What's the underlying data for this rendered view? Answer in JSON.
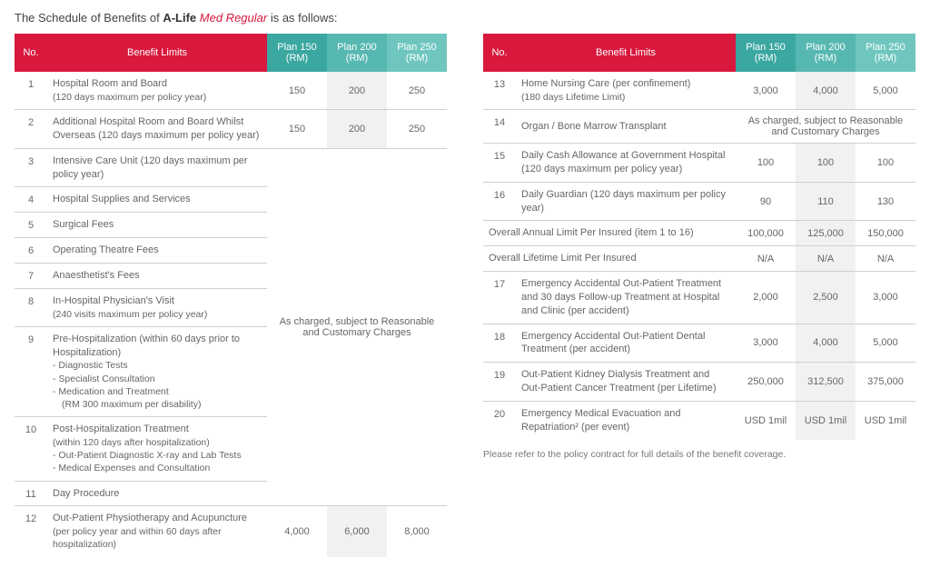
{
  "title_prefix": "The Schedule of Benefits of ",
  "title_brand": "A-Life ",
  "title_med": "Med Regular",
  "title_suffix": " is as follows:",
  "headers": {
    "no": "No.",
    "benefit": "Benefit Limits",
    "p1": "Plan 150 (RM)",
    "p2": "Plan 200 (RM)",
    "p3": "Plan 250 (RM)"
  },
  "left": {
    "r1": {
      "no": "1",
      "bl": "Hospital Room and Board",
      "sub": "(120 days maximum per policy year)",
      "p1": "150",
      "p2": "200",
      "p3": "250"
    },
    "r2": {
      "no": "2",
      "bl": "Additional Hospital Room and Board Whilst Overseas (120 days maximum per policy year)",
      "p1": "150",
      "p2": "200",
      "p3": "250"
    },
    "r3": {
      "no": "3",
      "bl": "Intensive Care Unit (120 days maximum per policy year)"
    },
    "r4": {
      "no": "4",
      "bl": "Hospital Supplies and Services"
    },
    "r5": {
      "no": "5",
      "bl": "Surgical Fees"
    },
    "r6": {
      "no": "6",
      "bl": "Operating Theatre Fees"
    },
    "r7": {
      "no": "7",
      "bl": "Anaesthetist's Fees"
    },
    "r8": {
      "no": "8",
      "bl": "In-Hospital Physician's Visit",
      "sub": "(240 visits maximum per policy year)"
    },
    "r9": {
      "no": "9",
      "bl": "Pre-Hospitalization (within 60 days prior to Hospitalization)",
      "s1": "- Diagnostic Tests",
      "s2": "- Specialist Consultation",
      "s3": "- Medication and Treatment",
      "s4": "   (RM 300 maximum per disability)"
    },
    "r10": {
      "no": "10",
      "bl": "Post-Hospitalization Treatment",
      "s0": "(within 120 days after hospitalization)",
      "s1": "-   Out-Patient Diagnostic X-ray and Lab Tests",
      "s2": "-   Medical Expenses and Consultation"
    },
    "r11": {
      "no": "11",
      "bl": "Day Procedure"
    },
    "r12": {
      "no": "12",
      "bl": "Out-Patient Physiotherapy and Acupuncture",
      "sub": "(per policy year and within 60 days after hospitalization)",
      "p1": "4,000",
      "p2": "6,000",
      "p3": "8,000"
    },
    "merged": "As charged, subject to Reasonable and Customary Charges"
  },
  "right": {
    "r13": {
      "no": "13",
      "bl": "Home Nursing Care (per confinement)",
      "sub": "(180 days Lifetime Limit)",
      "p1": "3,000",
      "p2": "4,000",
      "p3": "5,000"
    },
    "r14": {
      "no": "14",
      "bl": "Organ / Bone Marrow Transplant",
      "merged": "As charged, subject to Reasonable and Customary Charges"
    },
    "r15": {
      "no": "15",
      "bl": "Daily Cash Allowance at Government Hospital (120 days maximum per policy year)",
      "p1": "100",
      "p2": "100",
      "p3": "100"
    },
    "r16": {
      "no": "16",
      "bl": "Daily Guardian (120 days maximum per policy year)",
      "p1": "90",
      "p2": "110",
      "p3": "130"
    },
    "annual": {
      "bl": "Overall Annual Limit Per Insured (item 1 to 16)",
      "p1": "100,000",
      "p2": "125,000",
      "p3": "150,000"
    },
    "lifetime": {
      "bl": "Overall Lifetime Limit Per Insured",
      "p1": "N/A",
      "p2": "N/A",
      "p3": "N/A"
    },
    "r17": {
      "no": "17",
      "bl": "Emergency Accidental Out-Patient Treatment and 30 days Follow-up Treatment at Hospital and Clinic (per accident)",
      "p1": "2,000",
      "p2": "2,500",
      "p3": "3,000"
    },
    "r18": {
      "no": "18",
      "bl": "Emergency Accidental Out-Patient Dental Treatment (per accident)",
      "p1": "3,000",
      "p2": "4,000",
      "p3": "5,000"
    },
    "r19": {
      "no": "19",
      "bl": "Out-Patient Kidney Dialysis Treatment and Out-Patient Cancer Treatment (per Lifetime)",
      "p1": "250,000",
      "p2": "312,500",
      "p3": "375,000"
    },
    "r20": {
      "no": "20",
      "bl": "Emergency Medical Evacuation and Repatriation² (per event)",
      "p1": "USD 1mil",
      "p2": "USD 1mil",
      "p3": "USD 1mil"
    }
  },
  "footnote": "Please refer to the policy contract for full details of the benefit coverage."
}
